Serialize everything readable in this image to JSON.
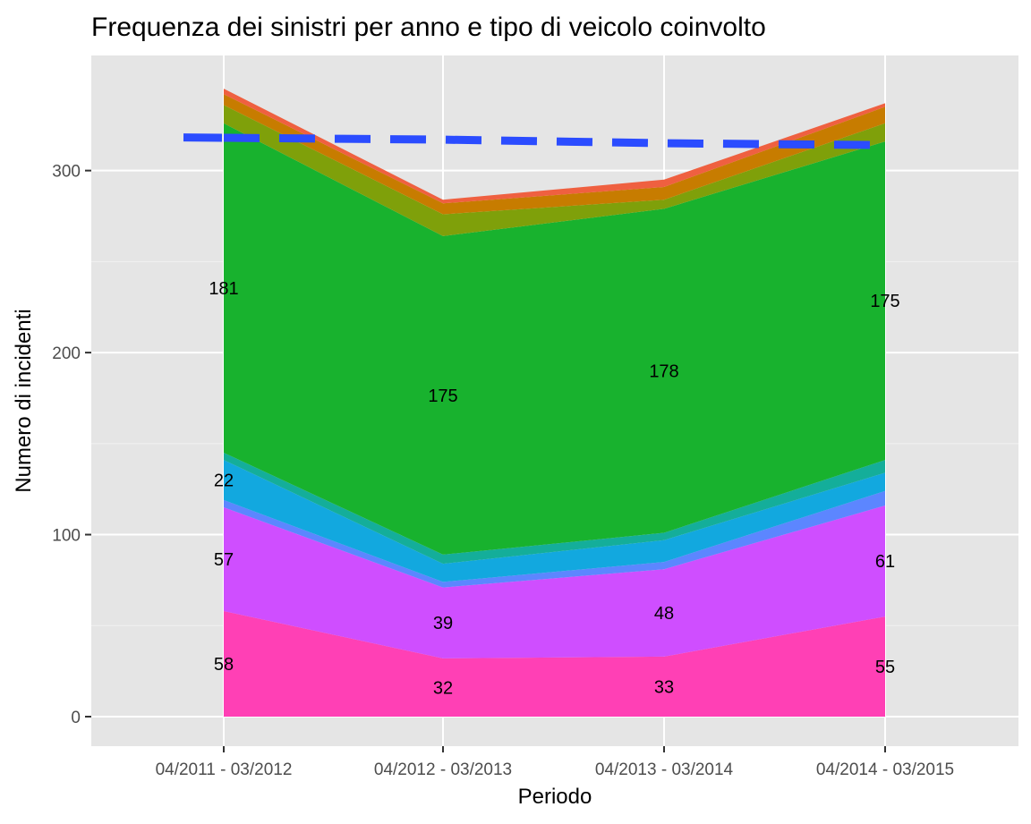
{
  "chart_data": {
    "type": "area",
    "stacked": true,
    "title": "Frequenza dei sinistri per anno e tipo di veicolo coinvolto",
    "xlabel": "Periodo",
    "ylabel": "Numero di incidenti",
    "categories": [
      "04/2011 - 03/2012",
      "04/2012 - 03/2013",
      "04/2013 - 03/2014",
      "04/2014 - 03/2015"
    ],
    "ylim": [
      0,
      350
    ],
    "yticks": [
      0,
      100,
      200,
      300
    ],
    "grid": true,
    "legend": "none",
    "series": [
      {
        "values": [
          58,
          32,
          33,
          55
        ],
        "color": "#FF40B5",
        "labels": [
          "58",
          "32",
          "33",
          "55"
        ]
      },
      {
        "values": [
          57,
          39,
          48,
          61
        ],
        "color": "#CF4EFF",
        "labels": [
          "57",
          "39",
          "48",
          "61"
        ]
      },
      {
        "values": [
          4,
          3,
          4,
          8
        ],
        "color": "#5C86FF",
        "labels": [
          "",
          "",
          "",
          ""
        ]
      },
      {
        "values": [
          22,
          10,
          12,
          10
        ],
        "color": "#12A8DF",
        "labels": [
          "22",
          "",
          "",
          ""
        ]
      },
      {
        "values": [
          4,
          5,
          4,
          7
        ],
        "color": "#14AE9A",
        "labels": [
          "",
          "",
          "",
          ""
        ]
      },
      {
        "values": [
          181,
          175,
          178,
          175
        ],
        "color": "#18B22E",
        "labels": [
          "181",
          "175",
          "178",
          "175"
        ]
      },
      {
        "values": [
          10,
          12,
          5,
          10
        ],
        "color": "#7FA00A",
        "labels": [
          "",
          "",
          "",
          ""
        ]
      },
      {
        "values": [
          6,
          6,
          7,
          9
        ],
        "color": "#C77C00",
        "labels": [
          "",
          "",
          "",
          ""
        ]
      },
      {
        "values": [
          3,
          2,
          4,
          2
        ],
        "color": "#EF6040",
        "labels": [
          "",
          "",
          "",
          ""
        ]
      }
    ],
    "trend_line": {
      "values": [
        318,
        317,
        315,
        314
      ],
      "color": "#2B4CFF",
      "style": "dashed"
    }
  }
}
